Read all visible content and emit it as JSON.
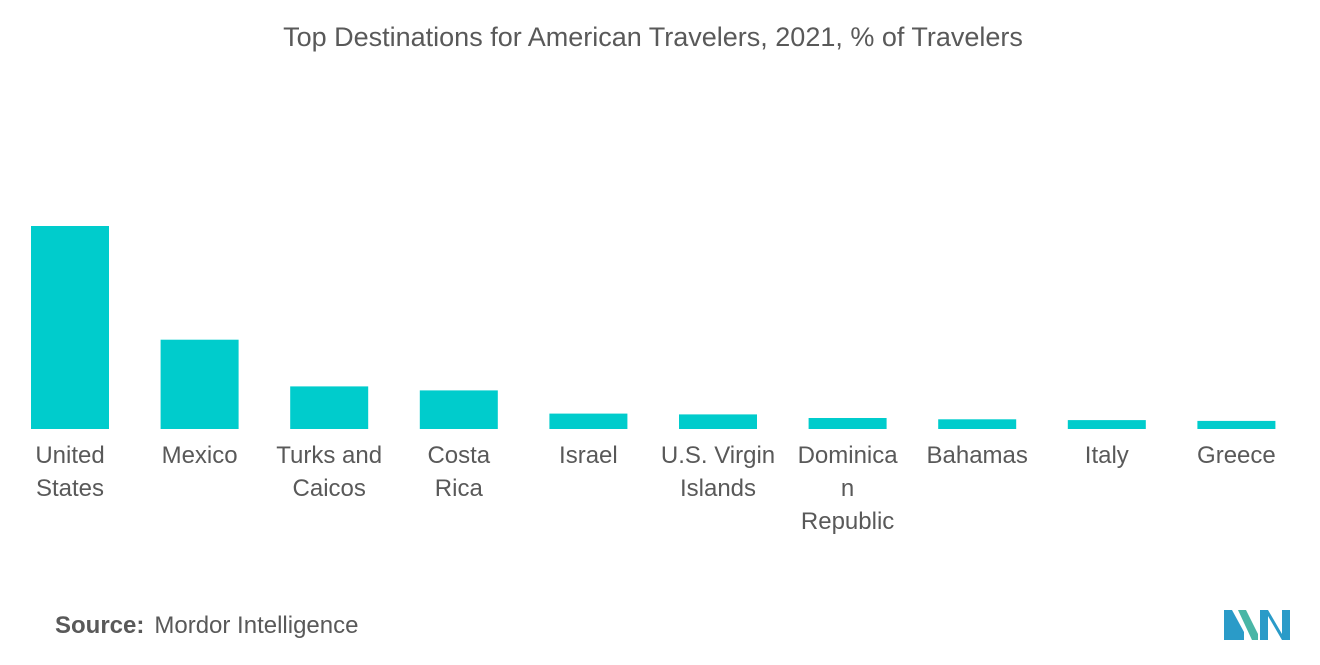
{
  "chart_data": {
    "type": "bar",
    "title": "Top Destinations for American Travelers, 2021, % of Travelers",
    "xlabel": "",
    "ylabel": "",
    "categories": [
      [
        "United",
        "States"
      ],
      [
        "Mexico"
      ],
      [
        "Turks and",
        "Caicos"
      ],
      [
        "Costa",
        "Rica"
      ],
      [
        "Israel"
      ],
      [
        "U.S. Virgin",
        "Islands"
      ],
      [
        "Dominica",
        "n",
        "Republic"
      ],
      [
        "Bahamas"
      ],
      [
        "Italy"
      ],
      [
        "Greece"
      ]
    ],
    "values": [
      50.0,
      22.0,
      10.5,
      9.5,
      3.8,
      3.6,
      2.7,
      2.4,
      2.2,
      2.0
    ],
    "ylim": [
      0,
      50
    ],
    "bar_color": "#00cccc",
    "grid": false,
    "legend": "none"
  },
  "footer": {
    "source_key": "Source:",
    "source_value": "Mordor Intelligence"
  },
  "logo": {
    "icon": "mordor-intelligence-logo",
    "colors": [
      "#2a9bc8",
      "#49b6a6"
    ]
  }
}
